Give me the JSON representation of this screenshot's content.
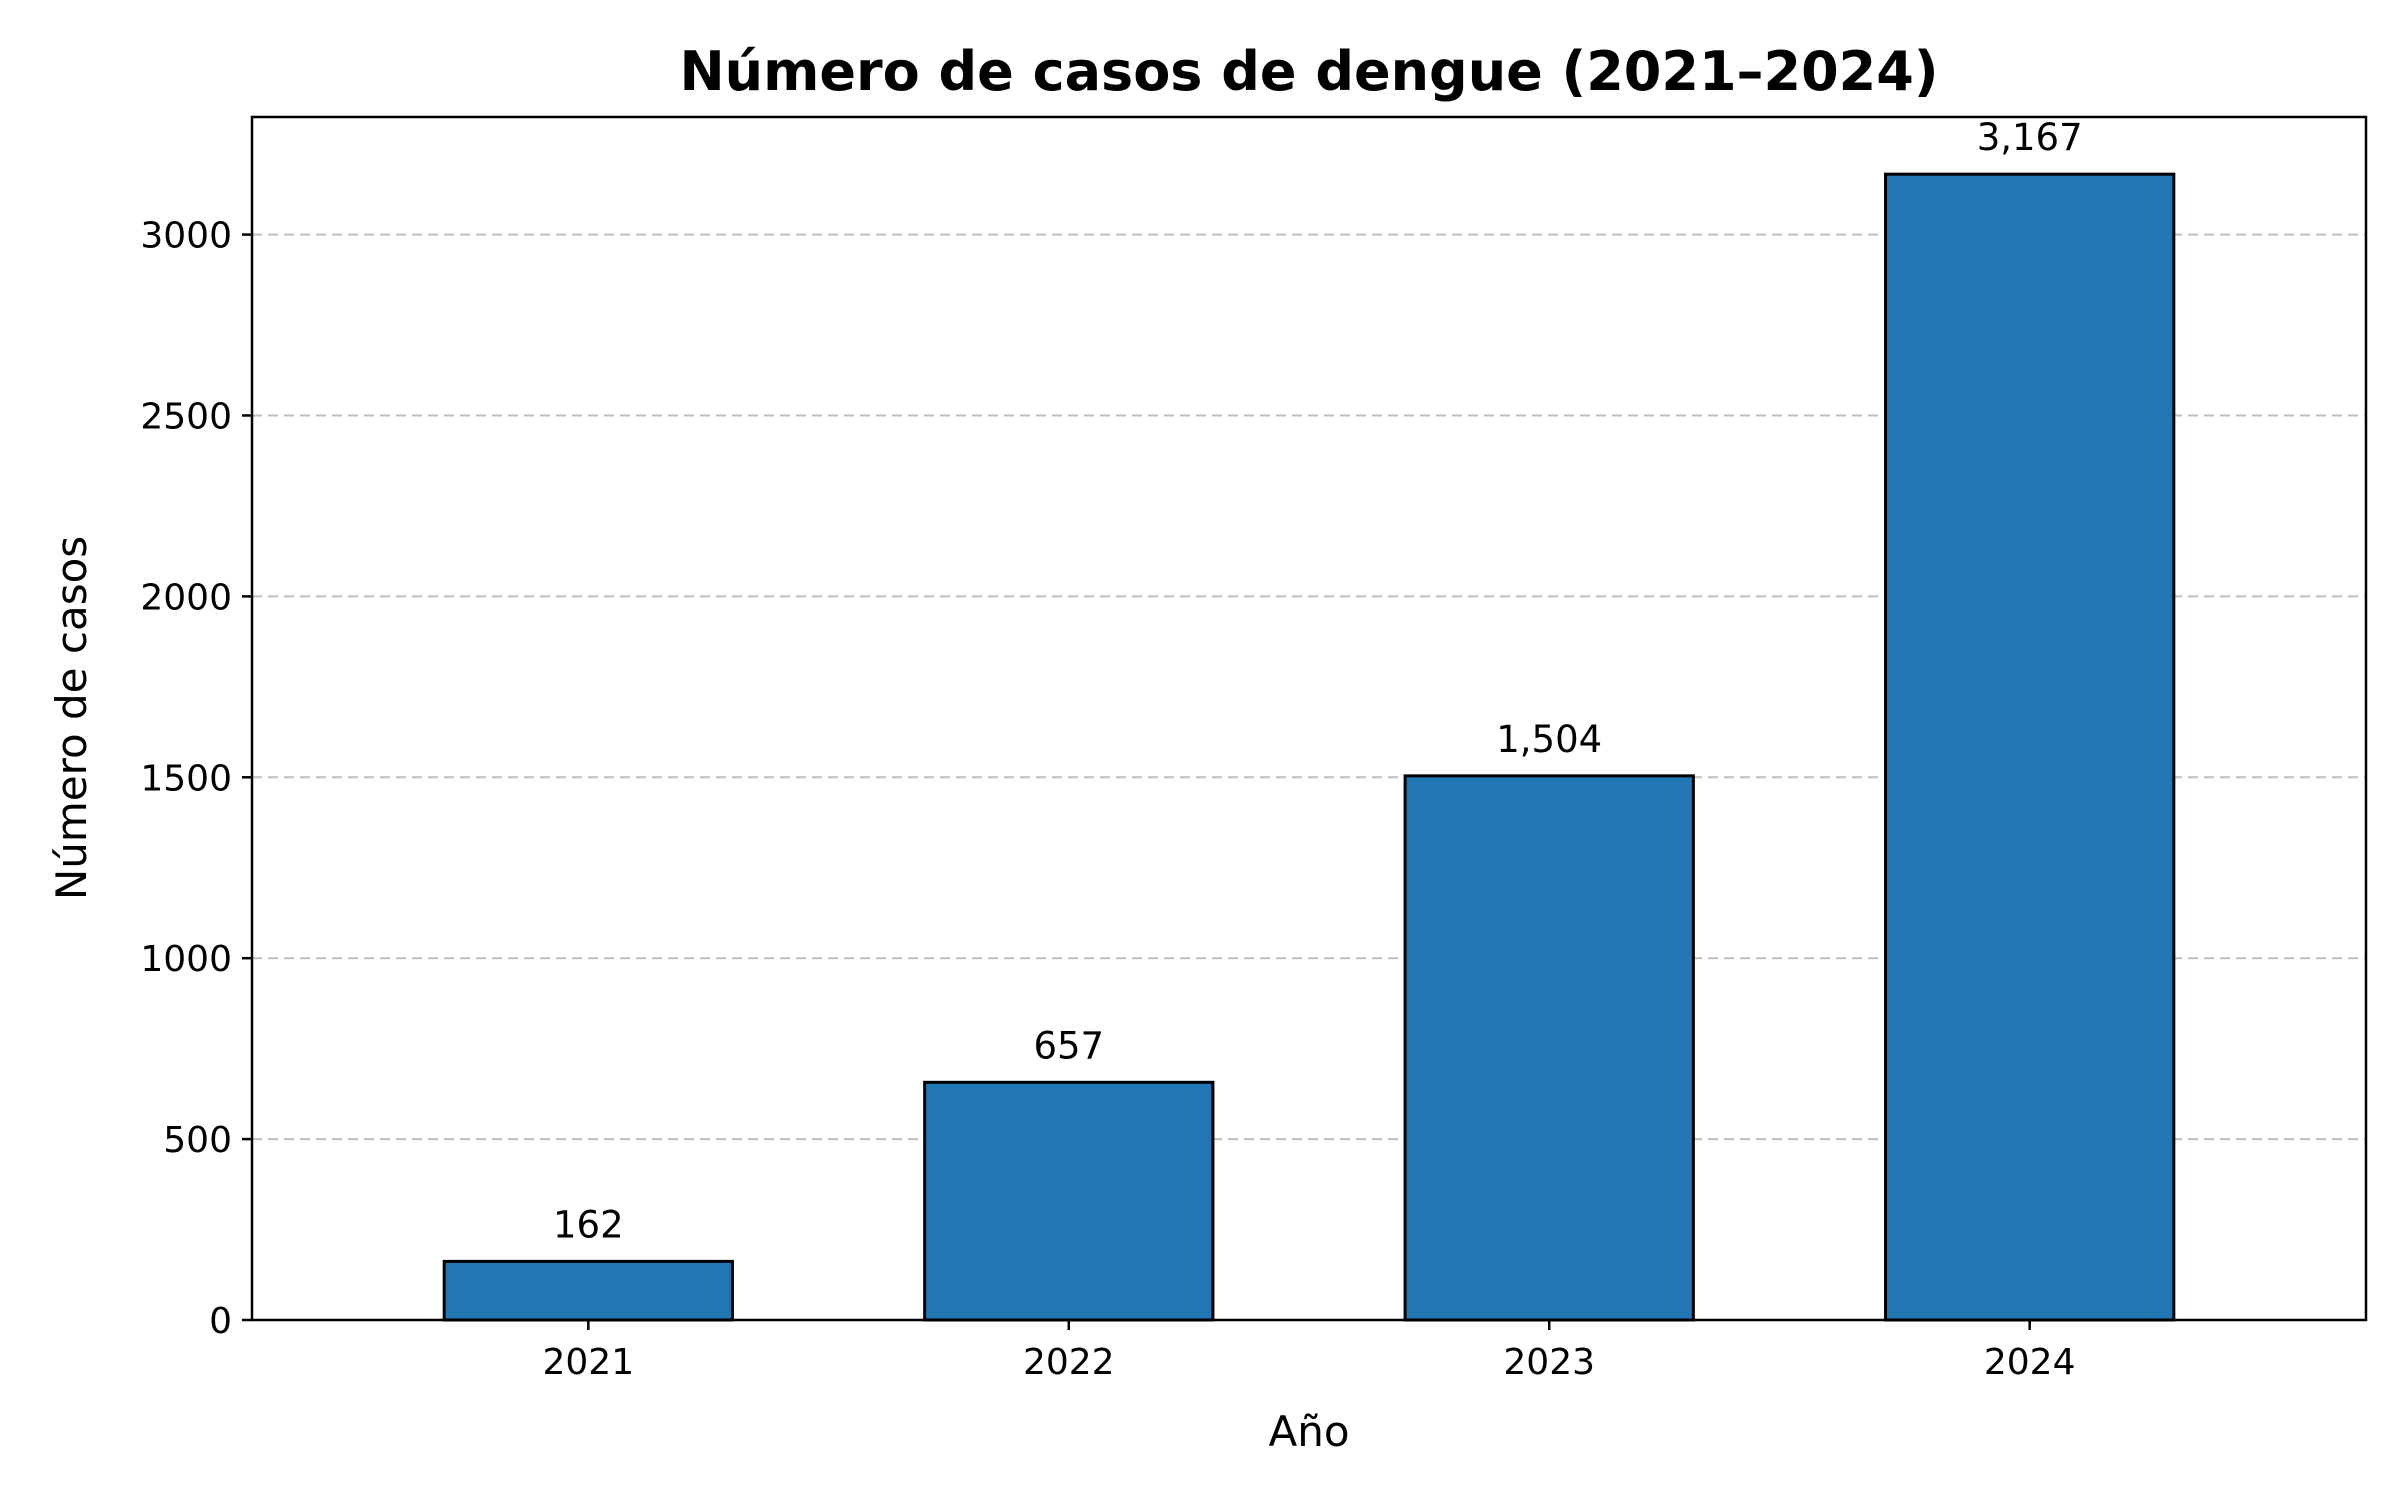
{
  "chart_data": {
    "type": "bar",
    "title": "Número de casos de dengue (2021–2024)",
    "xlabel": "Año",
    "ylabel": "Número de casos",
    "categories": [
      "2021",
      "2022",
      "2023",
      "2024"
    ],
    "values": [
      162,
      657,
      1504,
      3167
    ],
    "data_labels": [
      "162",
      "657",
      "1,504",
      "3,167"
    ],
    "yticks": [
      0,
      500,
      1000,
      1500,
      2000,
      2500,
      3000
    ],
    "ylim": [
      0,
      3325
    ],
    "grid": "y-dashed",
    "legend": "none",
    "bar_color": "#2077b4",
    "edge_color": "#000000"
  }
}
